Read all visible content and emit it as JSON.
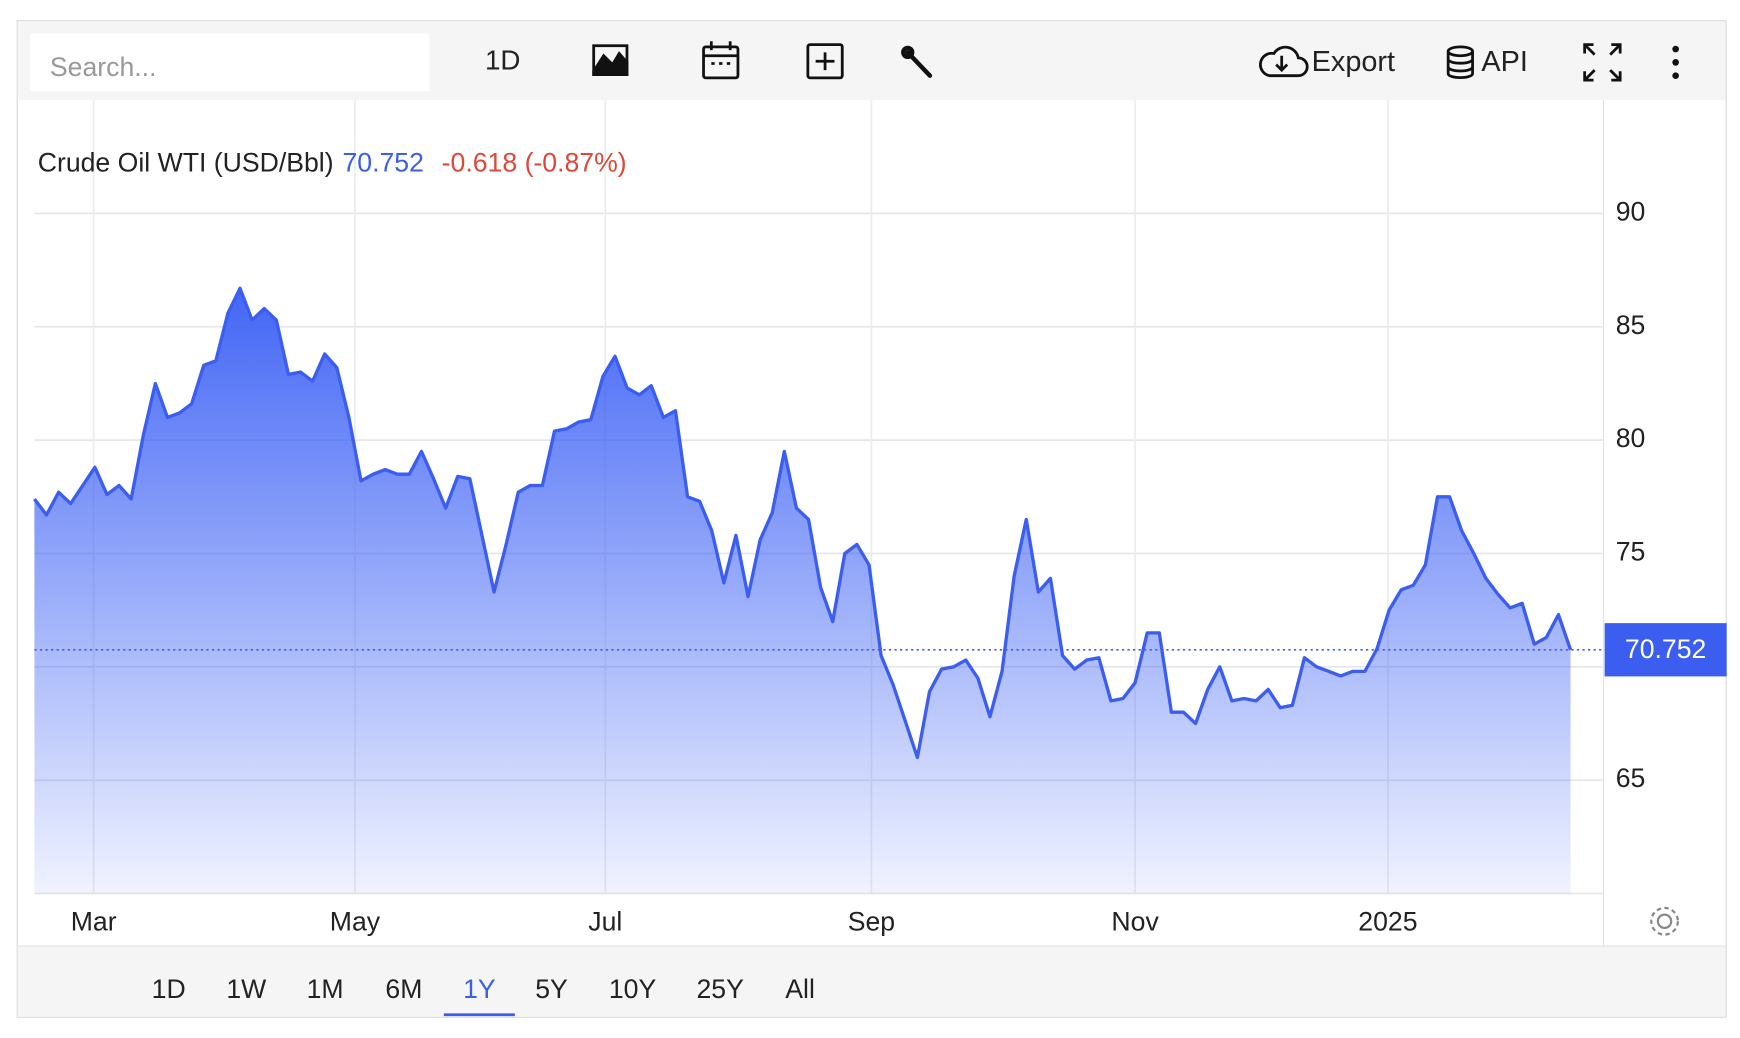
{
  "toolbar": {
    "search_placeholder": "Search...",
    "interval": "1D",
    "export": "Export",
    "api": "API"
  },
  "ranges": {
    "items": [
      "1D",
      "1W",
      "1M",
      "6M",
      "1Y",
      "5Y",
      "10Y",
      "25Y",
      "All"
    ],
    "active": "1Y"
  },
  "chart_data": {
    "type": "line",
    "title": "Crude Oil WTI (USD/Bbl)",
    "change": "-0.618 (-0.87%)",
    "color": "#3b5ef0",
    "grid": true,
    "yaxis_side": "right",
    "values": [
      77.4,
      76.7,
      77.7,
      77.2,
      78.0,
      78.8,
      77.6,
      78.0,
      77.4,
      80.2,
      82.5,
      81.0,
      81.2,
      81.6,
      83.3,
      83.5,
      85.6,
      86.7,
      85.3,
      85.8,
      85.3,
      82.9,
      83.0,
      82.6,
      83.8,
      83.2,
      81.0,
      78.2,
      78.5,
      78.7,
      78.5,
      78.5,
      79.5,
      78.3,
      77.0,
      78.4,
      78.3,
      75.8,
      73.3,
      75.4,
      77.7,
      78.0,
      78.0,
      80.4,
      80.5,
      80.8,
      80.9,
      82.8,
      83.7,
      82.3,
      82.0,
      82.4,
      81.0,
      81.3,
      77.5,
      77.3,
      76.0,
      73.7,
      75.8,
      73.1,
      75.6,
      76.8,
      79.5,
      77.0,
      76.5,
      73.5,
      72.0,
      75.0,
      75.4,
      74.5,
      70.5,
      69.2,
      67.6,
      66.0,
      68.9,
      69.9,
      70.0,
      70.3,
      69.5,
      67.8,
      69.8,
      74.0,
      76.5,
      73.3,
      73.9,
      70.5,
      69.9,
      70.3,
      70.4,
      68.5,
      68.6,
      69.3,
      71.5,
      71.5,
      68.0,
      68.0,
      67.5,
      69.0,
      70.0,
      68.5,
      68.6,
      68.5,
      69.0,
      68.2,
      68.3,
      70.4,
      70.0,
      69.8,
      69.6,
      69.8,
      69.8,
      70.8,
      72.5,
      73.4,
      73.6,
      74.5,
      77.5,
      77.5,
      76.0,
      75.0,
      73.9,
      73.2,
      72.6,
      72.8,
      71.0,
      71.3,
      72.3,
      70.752
    ],
    "xlim": [
      0,
      129.7
    ],
    "xticks": [
      {
        "value": 4.9,
        "label": "Mar"
      },
      {
        "value": 26.5,
        "label": "May"
      },
      {
        "value": 47.2,
        "label": "Jul"
      },
      {
        "value": 69.2,
        "label": "Sep"
      },
      {
        "value": 91.0,
        "label": "Nov"
      },
      {
        "value": 111.9,
        "label": "2025"
      }
    ],
    "ylim": [
      60,
      95
    ],
    "yticks": [
      65,
      70,
      75,
      80,
      85,
      90
    ]
  }
}
